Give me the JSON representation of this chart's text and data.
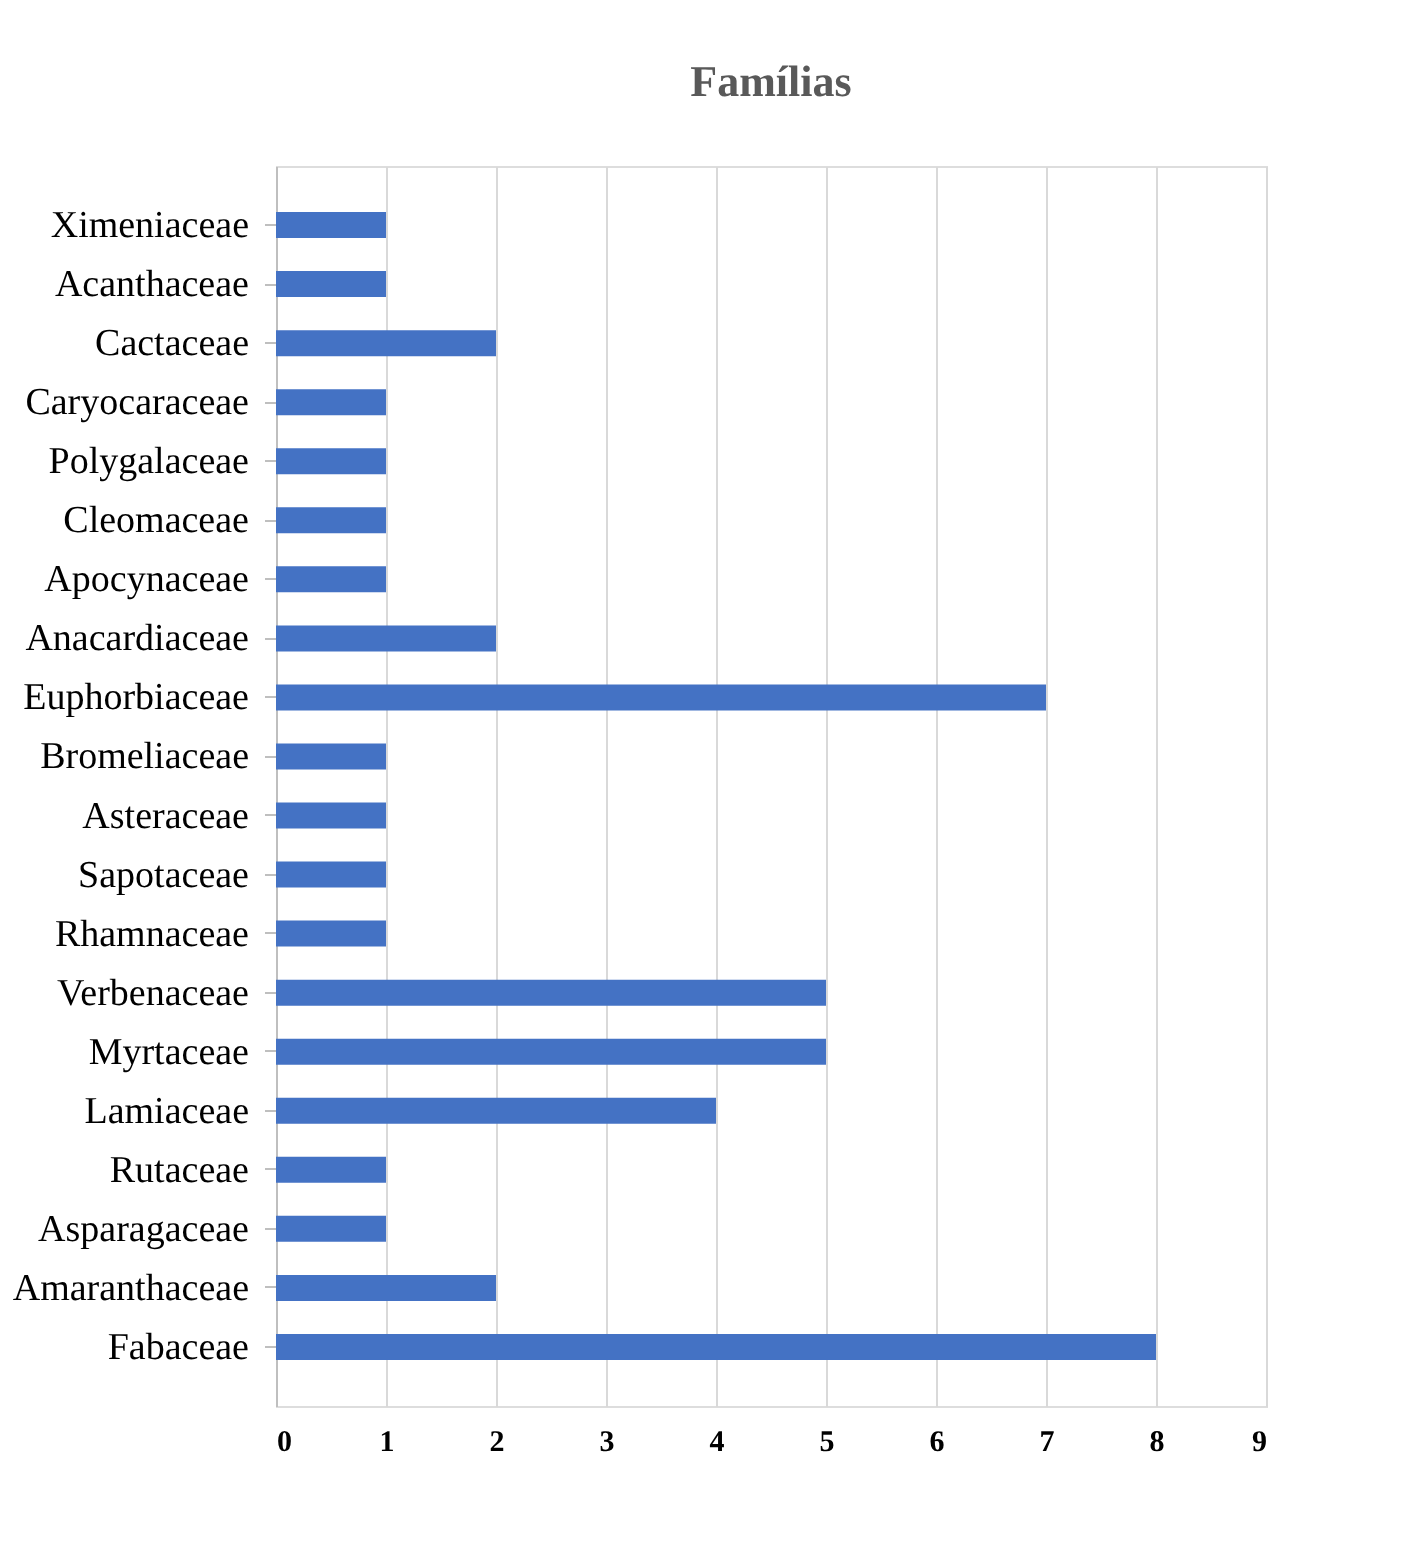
{
  "chart_data": {
    "type": "bar",
    "orientation": "horizontal",
    "title": "Famílias",
    "categories": [
      "Ximeniaceae",
      "Acanthaceae",
      "Cactaceae",
      "Caryocaraceae",
      "Polygalaceae",
      "Cleomaceae",
      "Apocynaceae",
      "Anacardiaceae",
      "Euphorbiaceae",
      "Bromeliaceae",
      "Asteraceae",
      "Sapotaceae",
      "Rhamnaceae",
      "Verbenaceae",
      "Myrtaceae",
      "Lamiaceae",
      "Rutaceae",
      "Asparagaceae",
      "Amaranthaceae",
      "Fabaceae"
    ],
    "values": [
      1,
      1,
      2,
      1,
      1,
      1,
      1,
      2,
      7,
      1,
      1,
      1,
      1,
      5,
      5,
      4,
      1,
      1,
      2,
      8
    ],
    "color": "#4472c4",
    "xlim": [
      0,
      9
    ],
    "xticks": [
      0,
      1,
      2,
      3,
      4,
      5,
      6,
      7,
      8,
      9
    ],
    "grid": "x"
  }
}
